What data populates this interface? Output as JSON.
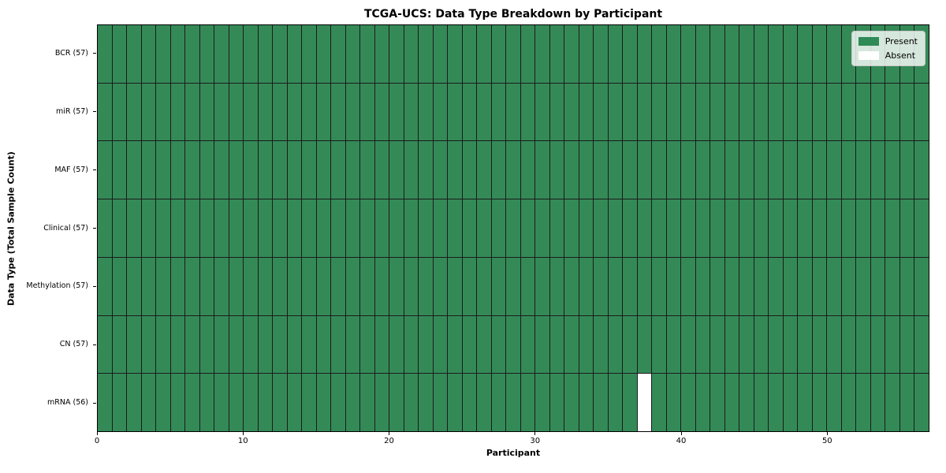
{
  "chart_data": {
    "type": "heatmap",
    "title": "TCGA-UCS: Data Type Breakdown by Participant",
    "xlabel": "Participant",
    "ylabel": "Data Type (Total Sample Count)",
    "n_participants": 57,
    "x_ticks": [
      0,
      10,
      20,
      30,
      40,
      50
    ],
    "xlim": [
      0,
      57
    ],
    "grid": true,
    "legend_position": "upper right",
    "rows": [
      {
        "name": "BCR",
        "label": "BCR (57)",
        "count": 57,
        "absent_indices": []
      },
      {
        "name": "miR",
        "label": "miR (57)",
        "count": 57,
        "absent_indices": []
      },
      {
        "name": "MAF",
        "label": "MAF (57)",
        "count": 57,
        "absent_indices": []
      },
      {
        "name": "Clinical",
        "label": "Clinical (57)",
        "count": 57,
        "absent_indices": []
      },
      {
        "name": "Methylation",
        "label": "Methylation (57)",
        "count": 57,
        "absent_indices": []
      },
      {
        "name": "CN",
        "label": "CN (57)",
        "count": 57,
        "absent_indices": []
      },
      {
        "name": "mRNA",
        "label": "mRNA (56)",
        "count": 56,
        "absent_indices": [
          37
        ]
      }
    ],
    "legend": [
      {
        "label": "Present",
        "color": "#2E8B57"
      },
      {
        "label": "Absent",
        "color": "#FFFFFF"
      }
    ],
    "colors": {
      "present": "#348A57",
      "absent": "#FFFFFF",
      "gridline": "#1b1b1b",
      "background": "#FFFFFF"
    }
  }
}
